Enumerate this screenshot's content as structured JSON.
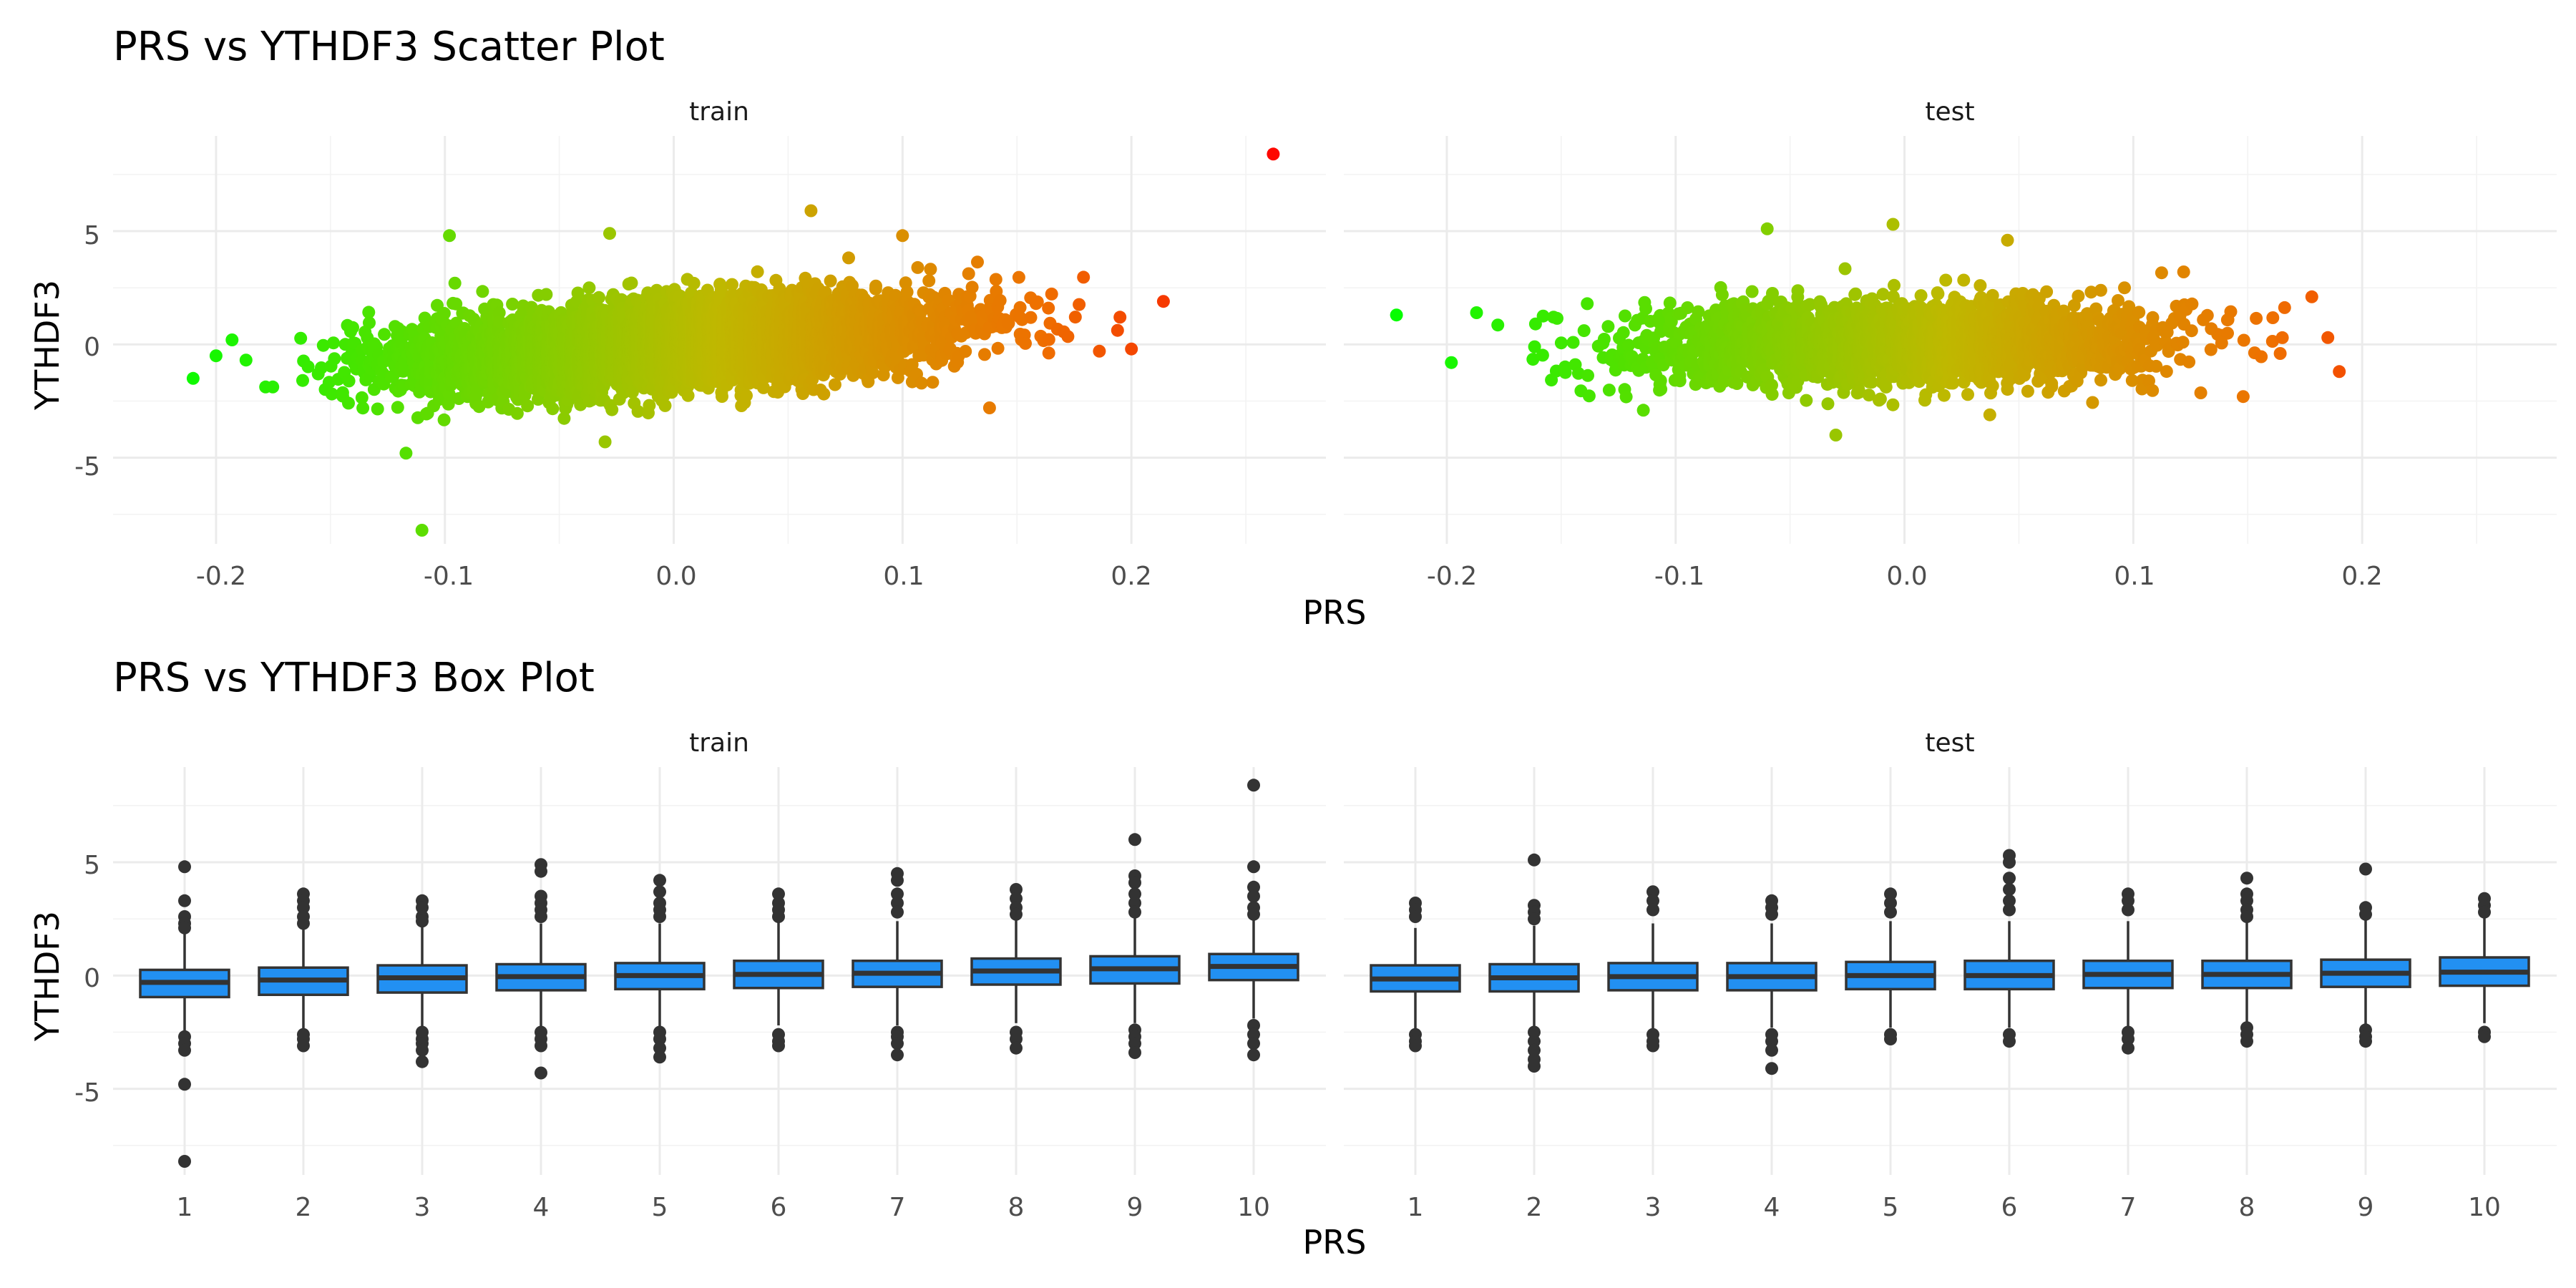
{
  "scatter": {
    "title": "PRS vs YTHDF3 Scatter Plot",
    "xlabel": "PRS",
    "ylabel": "YTHDF3",
    "panels": [
      {
        "label": "train",
        "x_ticks": [
          "-0.2",
          "-0.1",
          "0.0",
          "0.1",
          "0.2"
        ],
        "y_ticks": [
          "-5",
          "0",
          "5"
        ]
      },
      {
        "label": "test",
        "x_ticks": [
          "-0.2",
          "-0.1",
          "0.0",
          "0.1",
          "0.2"
        ],
        "y_ticks": [
          "-5",
          "0",
          "5"
        ]
      }
    ]
  },
  "box": {
    "title": "PRS vs YTHDF3 Box Plot",
    "xlabel": "PRS",
    "ylabel": "YTHDF3",
    "panels": [
      {
        "label": "train",
        "x_ticks": [
          "1",
          "2",
          "3",
          "4",
          "5",
          "6",
          "7",
          "8",
          "9",
          "10"
        ],
        "y_ticks": [
          "-5",
          "0",
          "5"
        ]
      },
      {
        "label": "test",
        "x_ticks": [
          "1",
          "2",
          "3",
          "4",
          "5",
          "6",
          "7",
          "8",
          "9",
          "10"
        ],
        "y_ticks": [
          "-5",
          "0",
          "5"
        ]
      }
    ]
  },
  "chart_data": [
    {
      "type": "scatter",
      "title": "PRS vs YTHDF3 Scatter Plot",
      "xlabel": "PRS",
      "ylabel": "YTHDF3",
      "facets": [
        "train",
        "test"
      ],
      "xlim": [
        -0.245,
        0.285
      ],
      "ylim": [
        -8.8,
        9.2
      ],
      "grid": true,
      "color_scale": {
        "low": "#00ff00",
        "mid": "#bfb800",
        "high_mid": "#ee7000",
        "high": "#ff0000",
        "mapped_to": "x",
        "domain": [
          -0.23,
          0.27
        ]
      },
      "cloud": [
        {
          "facet": "train",
          "n": 6500,
          "x_mean": 0.0,
          "x_sd": 0.055,
          "x_range": [
            -0.2,
            0.2
          ],
          "slope": 6.0,
          "resid_sd": 0.9,
          "y_range": [
            -3.8,
            4.3
          ]
        },
        {
          "facet": "test",
          "n": 2600,
          "x_mean": 0.0,
          "x_sd": 0.055,
          "x_range": [
            -0.18,
            0.18
          ],
          "slope": 1.5,
          "resid_sd": 0.9,
          "y_range": [
            -4.2,
            5.3
          ]
        }
      ],
      "points": [
        {
          "facet": "train",
          "x": 0.262,
          "y": 8.4
        },
        {
          "facet": "train",
          "x": 0.214,
          "y": 1.9
        },
        {
          "facet": "train",
          "x": 0.2,
          "y": -0.2
        },
        {
          "facet": "train",
          "x": 0.195,
          "y": 1.2
        },
        {
          "facet": "train",
          "x": 0.186,
          "y": -0.3
        },
        {
          "facet": "train",
          "x": 0.06,
          "y": 5.9
        },
        {
          "facet": "train",
          "x": 0.1,
          "y": 4.8
        },
        {
          "facet": "train",
          "x": -0.028,
          "y": 4.9
        },
        {
          "facet": "train",
          "x": -0.098,
          "y": 4.8
        },
        {
          "facet": "train",
          "x": 0.138,
          "y": -2.8
        },
        {
          "facet": "train",
          "x": -0.117,
          "y": -4.8
        },
        {
          "facet": "train",
          "x": -0.11,
          "y": -8.2
        },
        {
          "facet": "train",
          "x": -0.03,
          "y": -4.3
        },
        {
          "facet": "train",
          "x": -0.21,
          "y": -1.5
        },
        {
          "facet": "train",
          "x": -0.2,
          "y": -0.5
        },
        {
          "facet": "train",
          "x": -0.193,
          "y": 0.2
        },
        {
          "facet": "test",
          "x": -0.222,
          "y": 1.3
        },
        {
          "facet": "test",
          "x": -0.198,
          "y": -0.8
        },
        {
          "facet": "test",
          "x": -0.187,
          "y": 1.4
        },
        {
          "facet": "test",
          "x": -0.06,
          "y": 5.1
        },
        {
          "facet": "test",
          "x": -0.005,
          "y": 5.3
        },
        {
          "facet": "test",
          "x": 0.045,
          "y": 4.6
        },
        {
          "facet": "test",
          "x": -0.03,
          "y": -4.0
        },
        {
          "facet": "test",
          "x": 0.19,
          "y": -1.2
        },
        {
          "facet": "test",
          "x": 0.185,
          "y": 0.3
        },
        {
          "facet": "test",
          "x": 0.178,
          "y": 2.1
        },
        {
          "facet": "test",
          "x": 0.148,
          "y": -2.3
        },
        {
          "facet": "test",
          "x": 0.122,
          "y": 3.2
        }
      ]
    },
    {
      "type": "box",
      "title": "PRS vs YTHDF3 Box Plot",
      "xlabel": "PRS",
      "ylabel": "YTHDF3",
      "facets": [
        "train",
        "test"
      ],
      "categories": [
        "1",
        "2",
        "3",
        "4",
        "5",
        "6",
        "7",
        "8",
        "9",
        "10"
      ],
      "ylim": [
        -8.8,
        9.2
      ],
      "grid": true,
      "box_color": "#2290f2",
      "series": [
        {
          "facet": "train",
          "q1": [
            -0.95,
            -0.85,
            -0.75,
            -0.65,
            -0.6,
            -0.55,
            -0.5,
            -0.4,
            -0.35,
            -0.2
          ],
          "median": [
            -0.3,
            -0.2,
            -0.1,
            -0.05,
            0.0,
            0.05,
            0.1,
            0.2,
            0.3,
            0.4
          ],
          "q3": [
            0.25,
            0.35,
            0.45,
            0.5,
            0.55,
            0.65,
            0.65,
            0.75,
            0.85,
            0.95
          ],
          "whisker_low": [
            -2.6,
            -2.5,
            -2.4,
            -2.3,
            -2.3,
            -2.2,
            -2.2,
            -2.1,
            -2.1,
            -1.9
          ],
          "whisker_high": [
            1.95,
            2.1,
            2.2,
            2.3,
            2.3,
            2.4,
            2.4,
            2.5,
            2.6,
            2.6
          ],
          "outliers": [
            [
              4.8,
              3.3,
              2.6,
              2.3,
              2.1,
              -2.7,
              -3.0,
              -3.3,
              -4.8,
              -8.2
            ],
            [
              3.6,
              3.3,
              3.0,
              2.6,
              2.3,
              -2.6,
              -2.8,
              -3.1
            ],
            [
              3.3,
              3.0,
              2.6,
              2.4,
              -2.5,
              -2.8,
              -3.0,
              -3.3,
              -3.8
            ],
            [
              4.9,
              4.6,
              3.5,
              3.2,
              2.9,
              2.6,
              -2.5,
              -2.8,
              -3.1,
              -4.3
            ],
            [
              4.2,
              3.7,
              3.2,
              2.9,
              2.6,
              -2.5,
              -2.8,
              -3.2,
              -3.6
            ],
            [
              3.6,
              3.2,
              2.9,
              2.6,
              -2.6,
              -2.9,
              -3.1
            ],
            [
              4.5,
              4.2,
              3.6,
              3.2,
              2.8,
              -2.5,
              -2.7,
              -3.0,
              -3.5
            ],
            [
              3.8,
              3.4,
              3.0,
              2.7,
              -2.5,
              -2.8,
              -3.2
            ],
            [
              6.0,
              4.4,
              4.1,
              3.6,
              3.2,
              2.8,
              -2.4,
              -2.7,
              -3.0,
              -3.4
            ],
            [
              8.4,
              4.8,
              3.9,
              3.5,
              3.0,
              2.7,
              -2.2,
              -2.6,
              -3.0,
              -3.5
            ]
          ]
        },
        {
          "facet": "test",
          "q1": [
            -0.7,
            -0.7,
            -0.65,
            -0.65,
            -0.6,
            -0.6,
            -0.55,
            -0.55,
            -0.5,
            -0.45
          ],
          "median": [
            -0.15,
            -0.1,
            -0.05,
            -0.05,
            0.0,
            0.0,
            0.05,
            0.05,
            0.1,
            0.15
          ],
          "q3": [
            0.45,
            0.5,
            0.55,
            0.55,
            0.6,
            0.65,
            0.65,
            0.65,
            0.7,
            0.8
          ],
          "whisker_low": [
            -2.4,
            -2.4,
            -2.4,
            -2.3,
            -2.3,
            -2.3,
            -2.3,
            -2.2,
            -2.2,
            -2.1
          ],
          "whisker_high": [
            2.1,
            2.2,
            2.3,
            2.3,
            2.4,
            2.4,
            2.4,
            2.5,
            2.5,
            2.6
          ],
          "outliers": [
            [
              3.2,
              2.9,
              2.6,
              -2.6,
              -2.9,
              -3.1
            ],
            [
              5.1,
              3.1,
              2.8,
              2.5,
              -2.5,
              -2.9,
              -3.3,
              -3.7,
              -4.0
            ],
            [
              3.7,
              3.3,
              2.9,
              -2.6,
              -2.9,
              -3.1
            ],
            [
              3.3,
              3.0,
              2.7,
              -2.6,
              -2.9,
              -3.3,
              -4.1
            ],
            [
              3.6,
              3.2,
              2.8,
              -2.6,
              -2.8
            ],
            [
              5.3,
              5.0,
              4.3,
              3.8,
              3.3,
              2.9,
              -2.6,
              -2.9
            ],
            [
              3.6,
              3.3,
              2.9,
              -2.5,
              -2.8,
              -3.2
            ],
            [
              4.3,
              3.6,
              3.3,
              2.9,
              2.6,
              -2.3,
              -2.6,
              -2.9
            ],
            [
              4.7,
              3.0,
              2.7,
              -2.4,
              -2.7,
              -2.9
            ],
            [
              3.4,
              3.1,
              2.8,
              -2.5,
              -2.7
            ]
          ]
        }
      ]
    }
  ]
}
